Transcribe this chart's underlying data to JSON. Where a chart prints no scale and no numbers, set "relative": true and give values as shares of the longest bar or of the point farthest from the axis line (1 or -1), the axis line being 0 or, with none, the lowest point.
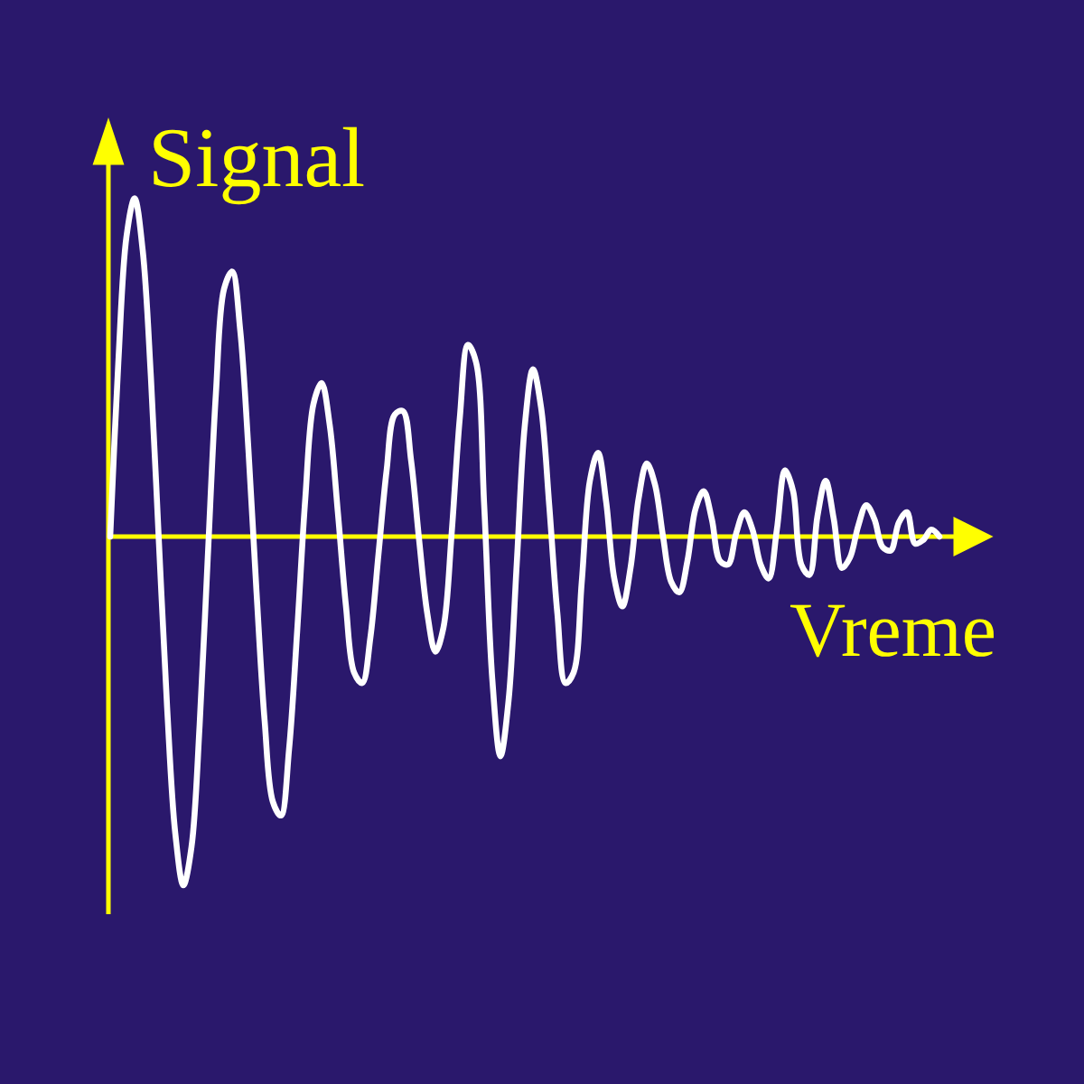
{
  "chart_data": {
    "type": "line",
    "xlabel": "Vreme",
    "ylabel": "Signal",
    "relative": true,
    "categories": [
      null,
      null,
      null,
      null,
      null,
      null,
      null,
      null,
      null,
      null,
      null,
      null,
      null,
      null,
      null,
      null,
      null,
      null,
      null,
      null,
      null,
      null,
      null,
      null,
      null,
      null,
      null,
      null,
      null,
      null,
      null,
      null,
      null,
      null,
      null,
      null,
      null,
      null,
      null,
      null,
      null,
      null,
      null,
      null,
      null,
      null,
      null,
      null,
      null,
      null,
      null,
      null,
      null,
      null,
      null,
      null,
      null,
      null,
      null,
      null,
      null,
      null,
      null,
      null,
      null,
      null,
      null,
      null,
      null,
      null,
      null,
      null,
      null,
      null,
      null,
      null,
      null,
      null,
      null,
      null,
      null,
      null,
      null,
      null,
      null,
      null,
      null,
      null,
      null,
      null,
      null,
      null,
      null,
      null,
      null,
      null,
      null,
      null,
      null,
      null,
      null,
      null,
      null
    ],
    "color": "#ffffff",
    "values": [
      0,
      0.5,
      0.86,
      0.97,
      0.82,
      0.46,
      -0.02,
      -0.49,
      -0.85,
      -1,
      -0.89,
      -0.54,
      -0.06,
      0.41,
      0.71,
      0.76,
      0.59,
      0.25,
      -0.16,
      -0.53,
      -0.76,
      -0.8,
      -0.61,
      -0.27,
      0.11,
      0.38,
      0.44,
      0.32,
      0.07,
      -0.2,
      -0.39,
      -0.42,
      -0.29,
      -0.05,
      0.19,
      0.35,
      0.36,
      0.22,
      -0.01,
      -0.22,
      -0.33,
      -0.26,
      0.01,
      0.34,
      0.55,
      0.5,
      0.09,
      -0.41,
      -0.63,
      -0.47,
      -0.08,
      0.32,
      0.48,
      0.37,
      0.09,
      -0.22,
      -0.42,
      -0.39,
      -0.13,
      0.16,
      0.24,
      0.1,
      -0.12,
      -0.2,
      -0.09,
      0.11,
      0.21,
      0.15,
      0,
      -0.13,
      -0.16,
      -0.07,
      0.08,
      0.13,
      0.05,
      -0.07,
      -0.08,
      0.01,
      0.07,
      0.02,
      -0.08,
      -0.12,
      0.02,
      0.19,
      0.13,
      -0.08,
      -0.11,
      0.06,
      0.16,
      0.05,
      -0.09,
      -0.06,
      0.03,
      0.09,
      0.05,
      -0.03,
      -0.04,
      0.04,
      0.07,
      -0.02,
      -0.01,
      0.02,
      0
    ],
    "ref_lines": [
      {
        "axis": "y",
        "value": 0,
        "color": "#ffff00"
      }
    ]
  }
}
